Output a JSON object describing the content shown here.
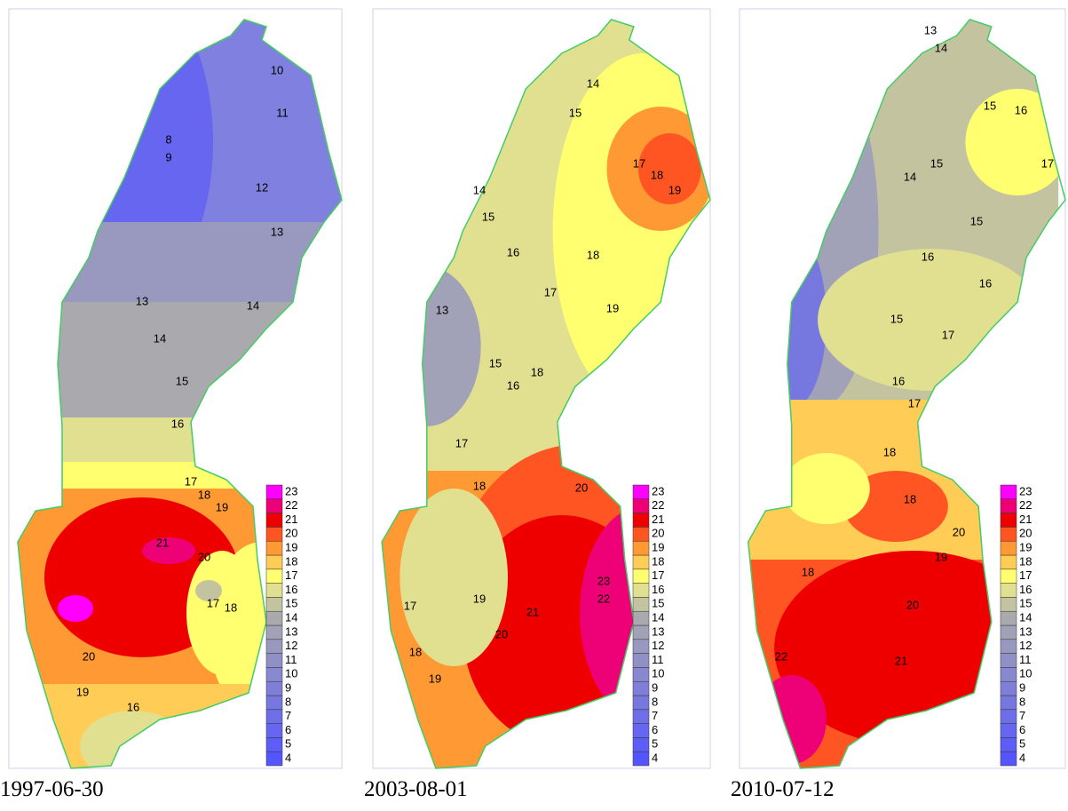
{
  "legend": {
    "levels": [
      4,
      5,
      6,
      7,
      8,
      9,
      10,
      11,
      12,
      13,
      14,
      15,
      16,
      17,
      18,
      19,
      20,
      21,
      22,
      23
    ],
    "colors": [
      "#5555ff",
      "#5d5df8",
      "#6666f0",
      "#6e6ee8",
      "#7777e0",
      "#7f7fd8",
      "#8888cf",
      "#9090c7",
      "#9999bf",
      "#a1a1b7",
      "#aaaaae",
      "#c3c3a0",
      "#e0e090",
      "#ffff70",
      "#ffcc55",
      "#ff9933",
      "#ff5522",
      "#ee0000",
      "#ee0077",
      "#ff00ff"
    ]
  },
  "panels": [
    {
      "date": "1997-06-30",
      "contour_labels": [
        10,
        11,
        12,
        13,
        14,
        15,
        16,
        17,
        18,
        19,
        21,
        20,
        17,
        18,
        20,
        19,
        16,
        8,
        9,
        14,
        13
      ]
    },
    {
      "date": "2003-08-01",
      "contour_labels": [
        14,
        15,
        17,
        18,
        19,
        14,
        15,
        16,
        17,
        18,
        13,
        19,
        15,
        16,
        18,
        17,
        18,
        19,
        20,
        22,
        23,
        21,
        20,
        19,
        18,
        17
      ]
    },
    {
      "date": "2010-07-12",
      "contour_labels": [
        13,
        14,
        15,
        16,
        17,
        15,
        14,
        15,
        16,
        16,
        15,
        17,
        16,
        17,
        18,
        18,
        20,
        21,
        22,
        18,
        19,
        20
      ]
    }
  ]
}
